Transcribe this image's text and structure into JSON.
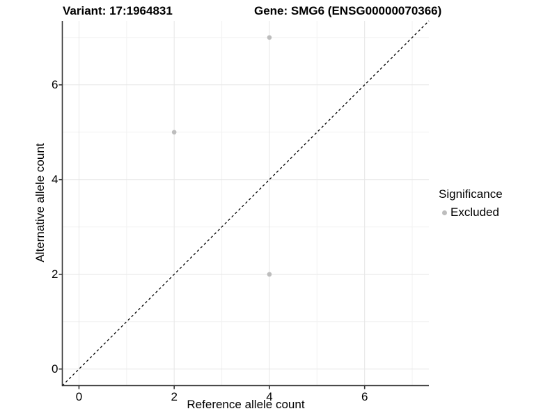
{
  "figure": {
    "title": "Variant: 17:1964831        Gene: SMG6 (ENSG00000070366)"
  },
  "chart_data": {
    "type": "scatter",
    "title_parts": [
      "Variant: 17:1964831",
      "Gene: SMG6 (ENSG00000070366)"
    ],
    "xlabel": "Reference allele count",
    "ylabel": "Alternative allele count",
    "xlim": [
      -0.35,
      7.35
    ],
    "ylim": [
      -0.35,
      7.35
    ],
    "x_ticks": [
      0,
      2,
      4,
      6
    ],
    "y_ticks": [
      0,
      2,
      4,
      6
    ],
    "x_minor_ticks": [
      1,
      3,
      5,
      7
    ],
    "y_minor_ticks": [
      1,
      3,
      5,
      7
    ],
    "grid": "major and minor gridlines on",
    "reference_line": {
      "type": "identity y=x",
      "style": "dashed",
      "color": "#000000"
    },
    "legend": {
      "title": "Significance",
      "position": "right",
      "entries": [
        {
          "label": "Excluded",
          "color": "#bdbdbd"
        }
      ]
    },
    "series": [
      {
        "name": "Excluded",
        "color": "#bdbdbd",
        "points": [
          [
            2,
            5
          ],
          [
            4,
            7
          ],
          [
            4,
            2
          ]
        ]
      }
    ],
    "colors": {
      "grid_major": "#e6e6e6",
      "grid_minor": "#f2f2f2",
      "axis": "#333333",
      "point": "#bdbdbd",
      "text": "#000000"
    }
  }
}
